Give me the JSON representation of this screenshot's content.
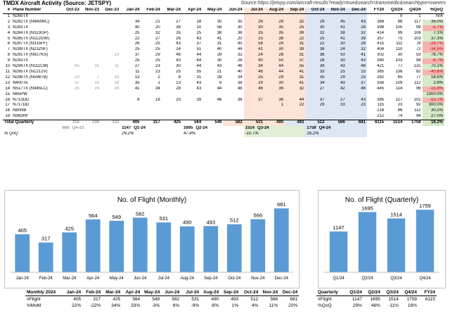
{
  "header": {
    "title": "TMDX Aircraft Activity (Source: JETSPY)",
    "source": "Source:https://jetspy.com/aircraft-results?ready=true&search=transmedic&searchtype=owners"
  },
  "table": {
    "columns": [
      "#",
      "Plane Number",
      "Oct-23",
      "Nov-23",
      "Dec-23",
      "Jan-24",
      "Feb-24",
      "Mar-24",
      "Apr-24",
      "May-24",
      "Jun-24",
      "Jul-24",
      "Aug-24",
      "Sep-24",
      "Oct-24",
      "Nov-24",
      "Dec-24",
      "FY24",
      "Q3/24",
      "Q4/24",
      "%QoQ"
    ],
    "rows": [
      [
        "1",
        "N265TX",
        "",
        "",
        "",
        "",
        "",
        "",
        "",
        "",
        "",
        "",
        "",
        "",
        "",
        "",
        "",
        "",
        "0",
        "1",
        "N/A"
      ],
      [
        "2",
        "N282TX (N480WC)",
        "",
        "",
        "",
        "34",
        "21",
        "27",
        "18",
        "30",
        "35",
        "26",
        "28",
        "32",
        "29",
        "45",
        "43",
        "368",
        "86",
        "117",
        "36.0%"
      ],
      [
        "3",
        "N283TX",
        "",
        "",
        "",
        "40",
        "20",
        "36",
        "10",
        "58",
        "30",
        "30",
        "35",
        "25",
        "30",
        "41",
        "28",
        "398",
        "105",
        "99",
        "-5.7%"
      ],
      [
        "4",
        "N284TX (N323GP)",
        "",
        "",
        "",
        "25",
        "32",
        "35",
        "25",
        "38",
        "38",
        "25",
        "35",
        "39",
        "32",
        "38",
        "32",
        "414",
        "99",
        "106",
        "7.1%"
      ],
      [
        "5",
        "N285TX (N112GW)",
        "",
        "",
        "",
        "22",
        "27",
        "26",
        "43",
        "41",
        "20",
        "15",
        "38",
        "22",
        "25",
        "41",
        "39",
        "357",
        "75",
        "103",
        "37.3%"
      ],
      [
        "6",
        "N287TX (N315FF)",
        "",
        "",
        "",
        "26",
        "25",
        "43",
        "37",
        "31",
        "45",
        "56",
        "24",
        "31",
        "22",
        "30",
        "26",
        "415",
        "111",
        "78",
        "-29.7%"
      ],
      [
        "7",
        "N289TX (N232SF)",
        "",
        "",
        "",
        "25",
        "25",
        "24",
        "51",
        "40",
        "44",
        "41",
        "30",
        "39",
        "38",
        "24",
        "32",
        "404",
        "110",
        "72",
        "-34.5%"
      ],
      [
        "8",
        "N291TX (N927KS)",
        "",
        "",
        "23",
        "37",
        "29",
        "48",
        "44",
        "29",
        "32",
        "24",
        "28",
        "31",
        "36",
        "50",
        "41",
        "302",
        "30",
        "53",
        "76.7%"
      ],
      [
        "9",
        "N293TX",
        "",
        "",
        "",
        "25",
        "25",
        "43",
        "44",
        "30",
        "26",
        "40",
        "50",
        "37",
        "28",
        "30",
        "43",
        "390",
        "103",
        "94",
        "-8.7%"
      ],
      [
        "10",
        "N294TX (N111CM)",
        "65",
        "35",
        "11",
        "27",
        "23",
        "30",
        "44",
        "43",
        "46",
        "34",
        "44",
        "55",
        "39",
        "43",
        "48",
        "421",
        "77",
        "131",
        "70.1%"
      ],
      [
        "11",
        "N295TX (N1212V)",
        "",
        "",
        "",
        "11",
        "23",
        "25",
        "55",
        "21",
        "40",
        "46",
        "44",
        "41",
        "33",
        "25",
        "15",
        "385",
        "138",
        "82",
        "-40.6%"
      ],
      [
        "12",
        "N298TX (N598TB)",
        "20",
        "7",
        "15",
        "13",
        "2",
        "8",
        "31",
        "28",
        "34",
        "25",
        "29",
        "31",
        "35",
        "29",
        "25",
        "282",
        "65",
        "77",
        "18.5%"
      ],
      [
        "13",
        "N400TE",
        "37",
        "16",
        "18",
        "35",
        "1",
        "13",
        "43",
        "6",
        "38",
        "29",
        "30",
        "41",
        "34",
        "43",
        "37",
        "356",
        "109",
        "112",
        "2.8%"
      ],
      [
        "14",
        "N517TX (N945LC)",
        "35",
        "24",
        "28",
        "41",
        "34",
        "28",
        "43",
        "44",
        "48",
        "46",
        "36",
        "32",
        "27",
        "42",
        "46",
        "445",
        "114",
        "96",
        "-15.8%"
      ],
      [
        "15",
        "N65PW",
        "",
        "",
        "",
        "",
        "",
        "",
        "",
        "",
        "",
        "",
        "",
        "",
        "",
        "",
        "",
        "",
        "",
        "",
        "1300.0%"
      ],
      [
        "16",
        "N713DD",
        "",
        "",
        "",
        "8",
        "18",
        "20",
        "39",
        "46",
        "36",
        "37",
        "36",
        "44",
        "37",
        "27",
        "43",
        "385",
        "117",
        "101",
        "-13.7%"
      ],
      [
        "17",
        "N717DD",
        "",
        "",
        "",
        "",
        "",
        "",
        "",
        "",
        "",
        "",
        "1",
        "22",
        "29",
        "33",
        "23",
        "115",
        "23",
        "92",
        "300.0%"
      ],
      [
        "18",
        "N80NB",
        "",
        "",
        "",
        "",
        "",
        "",
        "",
        "",
        "",
        "",
        "",
        "",
        "",
        "",
        "",
        "218",
        "86",
        "112",
        "30.2%"
      ],
      [
        "19",
        "N983RF",
        "",
        "",
        "",
        "",
        "",
        "",
        "",
        "",
        "",
        "",
        "",
        "",
        "",
        "",
        "",
        "212",
        "74",
        "94",
        "27.0%"
      ]
    ],
    "total": {
      "label": "Total Quarterly",
      "months": [
        "318",
        "238",
        "332",
        "405",
        "317",
        "425",
        "564",
        "549",
        "582",
        "531",
        "490",
        "493",
        "512",
        "566",
        "681"
      ],
      "fy24": "6115",
      "q3": "1514",
      "q4": "1759",
      "qoq": "16.2%",
      "quarters": [
        {
          "value": "888",
          "label": "Q4-23"
        },
        {
          "value": "1147",
          "label": "Q1-24"
        },
        {
          "value": "1695",
          "label": "Q2-24"
        },
        {
          "value": "1514",
          "label": "Q3-24"
        },
        {
          "value": "1759",
          "label": "Q4-24"
        }
      ]
    },
    "qoq_row": {
      "label": "% QoQ",
      "values": [
        "29.2%",
        "47.8%",
        "-10.7%",
        "16.2%"
      ]
    }
  },
  "chart_data": [
    {
      "type": "bar",
      "title": "No. of Flight (Monthly)",
      "categories": [
        "Jan-24",
        "Feb-24",
        "Mar-24",
        "Apr-24",
        "May-24",
        "Jun-24",
        "Jul-24",
        "Aug-24",
        "Sep-24",
        "Oct-24",
        "Nov-24",
        "Dec-24"
      ],
      "values": [
        405,
        317,
        425,
        564,
        549,
        582,
        531,
        490,
        493,
        512,
        566,
        681
      ],
      "ylim": [
        0,
        720
      ],
      "xlabel": "",
      "ylabel": "",
      "color": "#5b9bd5"
    },
    {
      "type": "bar",
      "title": "No. of Flight (Quarterly)",
      "categories": [
        "Q1/24",
        "Q2/24",
        "Q3/24",
        "Q4/24"
      ],
      "values": [
        1147,
        1695,
        1514,
        1759
      ],
      "ylim": [
        0,
        1900
      ],
      "xlabel": "",
      "ylabel": "",
      "color": "#5b9bd5"
    }
  ],
  "monthly_table": {
    "header": [
      "Monthly 2024",
      "Jan-24",
      "Feb-24",
      "Mar-24",
      "Apr-24",
      "May-24",
      "Jun-24",
      "Jul-24",
      "Aug-24",
      "Sep-24",
      "Oct-24",
      "Nov-24",
      "Dec-24"
    ],
    "flight": [
      "#Flight",
      "405",
      "317",
      "425",
      "564",
      "549",
      "582",
      "531",
      "490",
      "493",
      "512",
      "566",
      "681"
    ],
    "mom": [
      "%MoM",
      "22%",
      "-22%",
      "34%",
      "33%",
      "-3%",
      "6%",
      "-9%",
      "-8%",
      "1%",
      "4%",
      "11%",
      "20%"
    ]
  },
  "quarterly_table": {
    "header": [
      "Quarterly",
      "Q1/24",
      "Q2/24",
      "Q3/24",
      "Q4/24",
      "FY24"
    ],
    "flight": [
      "#Flight",
      "1147",
      "1695",
      "1514",
      "1759",
      "6115"
    ],
    "qoq": [
      "%QoQ",
      "29%",
      "48%",
      "-11%",
      "16%",
      ""
    ]
  }
}
